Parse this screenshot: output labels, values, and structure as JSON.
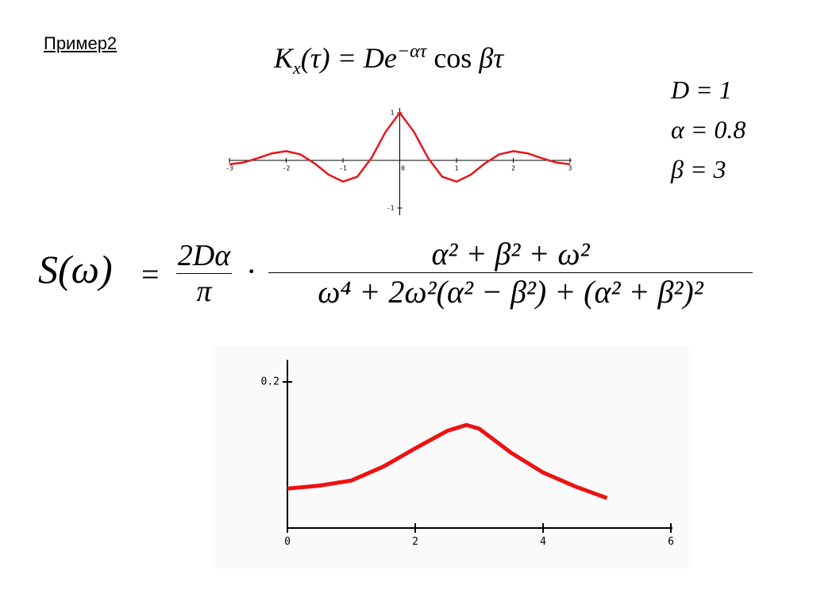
{
  "title": "Пример2",
  "formula_k": {
    "k": "K",
    "sub": "x",
    "mid": "(τ) = De",
    "sup": "−ατ",
    "cos": "cos",
    "tail": "βτ"
  },
  "params": [
    "D = 1",
    "α = 0.8",
    "β = 3"
  ],
  "formula_s": {
    "lhs": "S(ω)",
    "eq": "=",
    "coef_num": "2Dα",
    "coef_den": "π",
    "dot": "·",
    "num": "α² + β² + ω²",
    "den": "ω⁴ + 2ω²(α² − β²) + (α² + β²)²"
  },
  "chart_data": [
    {
      "type": "line",
      "color": "#e8151b",
      "x": [
        -3,
        -2.75,
        -2.5,
        -2.25,
        -2,
        -1.75,
        -1.5,
        -1.25,
        -1,
        -0.75,
        -0.5,
        -0.25,
        0,
        0.25,
        0.5,
        0.75,
        1,
        1.25,
        1.5,
        1.75,
        2,
        2.25,
        2.5,
        2.75,
        3
      ],
      "values": [
        -0.082,
        -0.043,
        0.047,
        0.148,
        0.194,
        0.126,
        -0.063,
        -0.302,
        -0.445,
        -0.345,
        0.047,
        0.599,
        1,
        0.599,
        0.047,
        -0.345,
        -0.445,
        -0.302,
        -0.063,
        0.126,
        0.194,
        0.148,
        0.047,
        -0.043,
        -0.082
      ],
      "xlim": [
        -3,
        3
      ],
      "ylim": [
        -1.1,
        1.1
      ],
      "xticks": [
        -3,
        -2,
        -1,
        0,
        1,
        2,
        3
      ],
      "yticks": [
        -1,
        1
      ]
    },
    {
      "type": "line",
      "color": "#ee1111",
      "x": [
        0,
        0.5,
        1,
        1.5,
        2,
        2.5,
        2.8,
        3,
        3.5,
        4,
        4.5,
        5
      ],
      "values": [
        0.054,
        0.058,
        0.065,
        0.084,
        0.109,
        0.133,
        0.141,
        0.136,
        0.103,
        0.076,
        0.057,
        0.041
      ],
      "xlim": [
        0,
        6
      ],
      "ylim": [
        0,
        0.23
      ],
      "xticks": [
        0,
        2,
        4,
        6
      ],
      "yticks": [
        0.2
      ]
    }
  ]
}
